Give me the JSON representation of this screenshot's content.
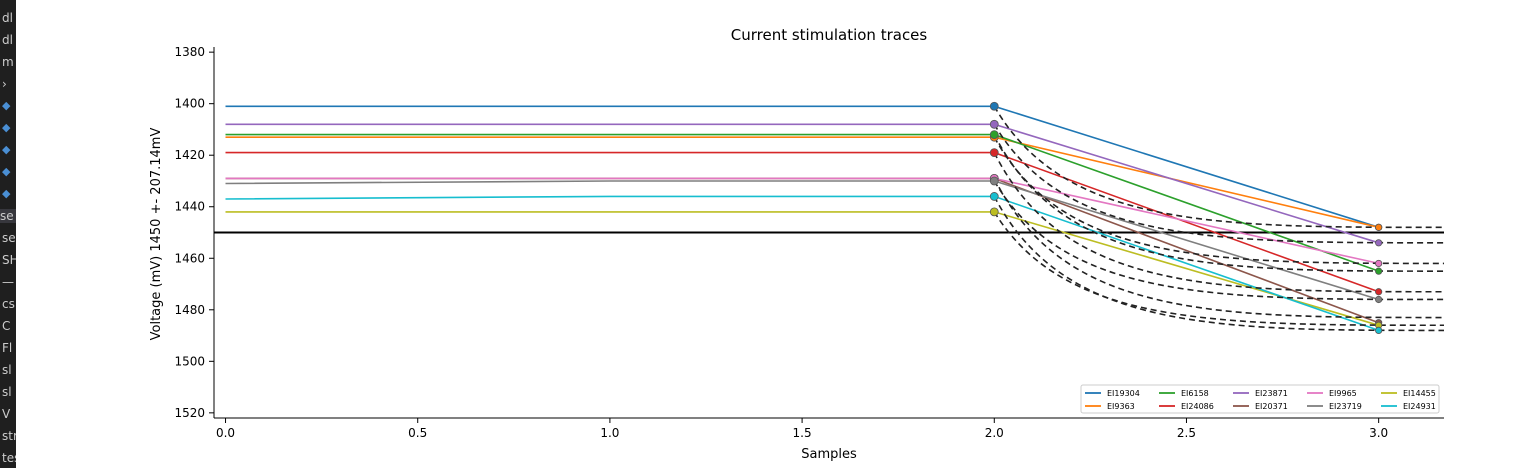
{
  "sidebar": {
    "items": [
      {
        "text": "dl",
        "kind": "text"
      },
      {
        "text": "dl",
        "kind": "text"
      },
      {
        "text": "m",
        "kind": "text"
      },
      {
        "text": "›",
        "kind": "text"
      },
      {
        "text": "◆",
        "kind": "py"
      },
      {
        "text": "◆",
        "kind": "py"
      },
      {
        "text": "◆",
        "kind": "py"
      },
      {
        "text": "◆",
        "kind": "py"
      },
      {
        "text": "◆",
        "kind": "py"
      },
      {
        "text": "se",
        "kind": "sel"
      },
      {
        "text": "se",
        "kind": "text"
      },
      {
        "text": "SH",
        "kind": "text"
      },
      {
        "text": "—",
        "kind": "text"
      },
      {
        "text": "cs",
        "kind": "text"
      },
      {
        "text": "C",
        "kind": "text"
      },
      {
        "text": "Fl",
        "kind": "text"
      },
      {
        "text": "sl",
        "kind": "text"
      },
      {
        "text": "sl",
        "kind": "text"
      },
      {
        "text": "V",
        "kind": "text"
      },
      {
        "text": "str",
        "kind": "text"
      },
      {
        "text": "tes",
        "kind": "text"
      }
    ]
  },
  "chart_data": {
    "type": "line",
    "title": "Current stimulation traces",
    "xlabel": "Samples",
    "ylabel": "Voltage (mV) 1450 +- 207.14mV",
    "xlim": [
      -0.03,
      3.17
    ],
    "ylim": [
      1522,
      1378
    ],
    "y_inverted": true,
    "xticks": [
      0.0,
      0.5,
      1.0,
      1.5,
      2.0,
      2.5,
      3.0
    ],
    "xtick_labels": [
      "0.0",
      "0.5",
      "1.0",
      "1.5",
      "2.0",
      "2.5",
      "3.0"
    ],
    "yticks": [
      1380,
      1400,
      1420,
      1440,
      1460,
      1480,
      1500,
      1520
    ],
    "ytick_labels": [
      "1380",
      "1400",
      "1420",
      "1440",
      "1460",
      "1480",
      "1500",
      "1520"
    ],
    "grid": false,
    "legend_position": "lower-right",
    "legend_columns": 5,
    "reference_line": {
      "y": 1450,
      "color": "#000000"
    },
    "series": [
      {
        "name": "EI19304",
        "color": "#1f77b4",
        "x": [
          0,
          1,
          2,
          3
        ],
        "values": [
          1401,
          1401,
          1401,
          1448
        ]
      },
      {
        "name": "EI9363",
        "color": "#ff7f0e",
        "x": [
          0,
          1,
          2,
          3
        ],
        "values": [
          1413,
          1413,
          1413,
          1448
        ]
      },
      {
        "name": "EI6158",
        "color": "#2ca02c",
        "x": [
          0,
          1,
          2,
          3
        ],
        "values": [
          1412,
          1412,
          1412,
          1465
        ]
      },
      {
        "name": "EI24086",
        "color": "#d62728",
        "x": [
          0,
          1,
          2,
          3
        ],
        "values": [
          1419,
          1419,
          1419,
          1473
        ]
      },
      {
        "name": "EI23871",
        "color": "#9467bd",
        "x": [
          0,
          1,
          2,
          3
        ],
        "values": [
          1408,
          1408,
          1408,
          1454
        ]
      },
      {
        "name": "EI20371",
        "color": "#8c564b",
        "x": [
          0,
          1,
          2,
          3
        ],
        "values": [
          1429,
          1429,
          1429,
          1485
        ]
      },
      {
        "name": "EI9965",
        "color": "#e377c2",
        "x": [
          0,
          1,
          2,
          3
        ],
        "values": [
          1429,
          1429,
          1429,
          1462
        ]
      },
      {
        "name": "EI23719",
        "color": "#7f7f7f",
        "x": [
          0,
          1,
          2,
          3
        ],
        "values": [
          1431,
          1430,
          1430,
          1476
        ]
      },
      {
        "name": "EI14455",
        "color": "#bcbd22",
        "x": [
          0,
          1,
          2,
          3
        ],
        "values": [
          1442,
          1442,
          1442,
          1486
        ]
      },
      {
        "name": "EI24931",
        "color": "#17becf",
        "x": [
          0,
          1,
          2,
          3
        ],
        "values": [
          1437,
          1436,
          1436,
          1488
        ]
      }
    ],
    "fit_curves": {
      "style": "dashed",
      "color": "#222222",
      "x_start": 2.0,
      "x_end": 3.17,
      "curves": [
        {
          "from": 1401,
          "to": 1448
        },
        {
          "from": 1408,
          "to": 1454
        },
        {
          "from": 1413,
          "to": 1462
        },
        {
          "from": 1412,
          "to": 1465
        },
        {
          "from": 1419,
          "to": 1473
        },
        {
          "from": 1430,
          "to": 1476
        },
        {
          "from": 1429,
          "to": 1483
        },
        {
          "from": 1442,
          "to": 1486
        },
        {
          "from": 1436,
          "to": 1488
        }
      ]
    }
  }
}
